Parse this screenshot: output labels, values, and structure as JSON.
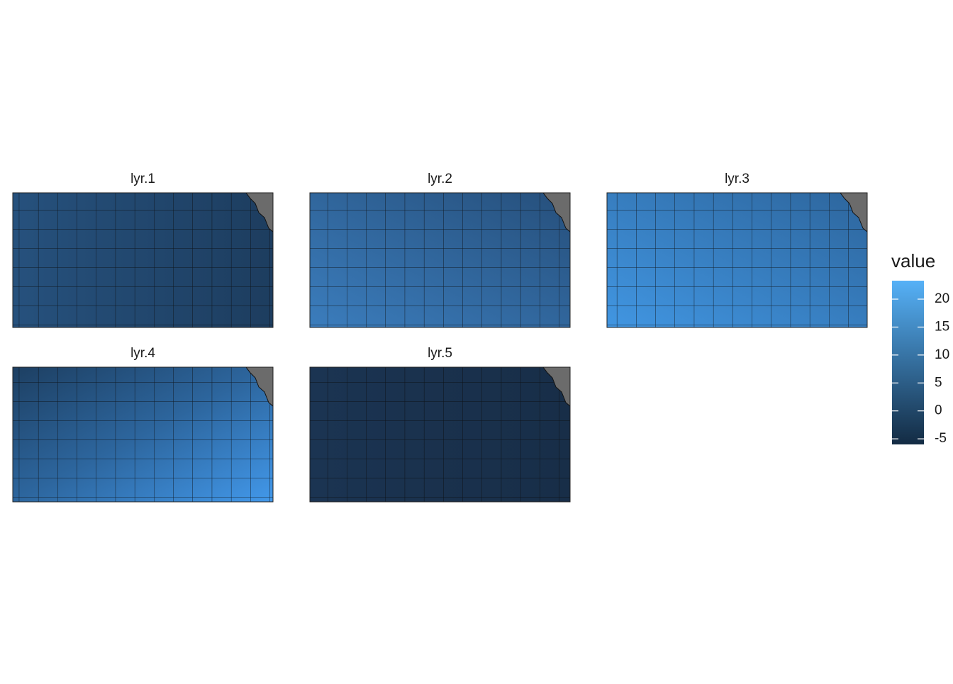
{
  "panels": [
    {
      "title": "lyr.1"
    },
    {
      "title": "lyr.2"
    },
    {
      "title": "lyr.3"
    },
    {
      "title": "lyr.4"
    },
    {
      "title": "lyr.5"
    }
  ],
  "legend": {
    "title": "value",
    "limits": [
      -6,
      23.3
    ],
    "ticks": [
      -5,
      0,
      5,
      10,
      15,
      20
    ],
    "colors": [
      "#132B43",
      "#56B1F7"
    ]
  }
}
